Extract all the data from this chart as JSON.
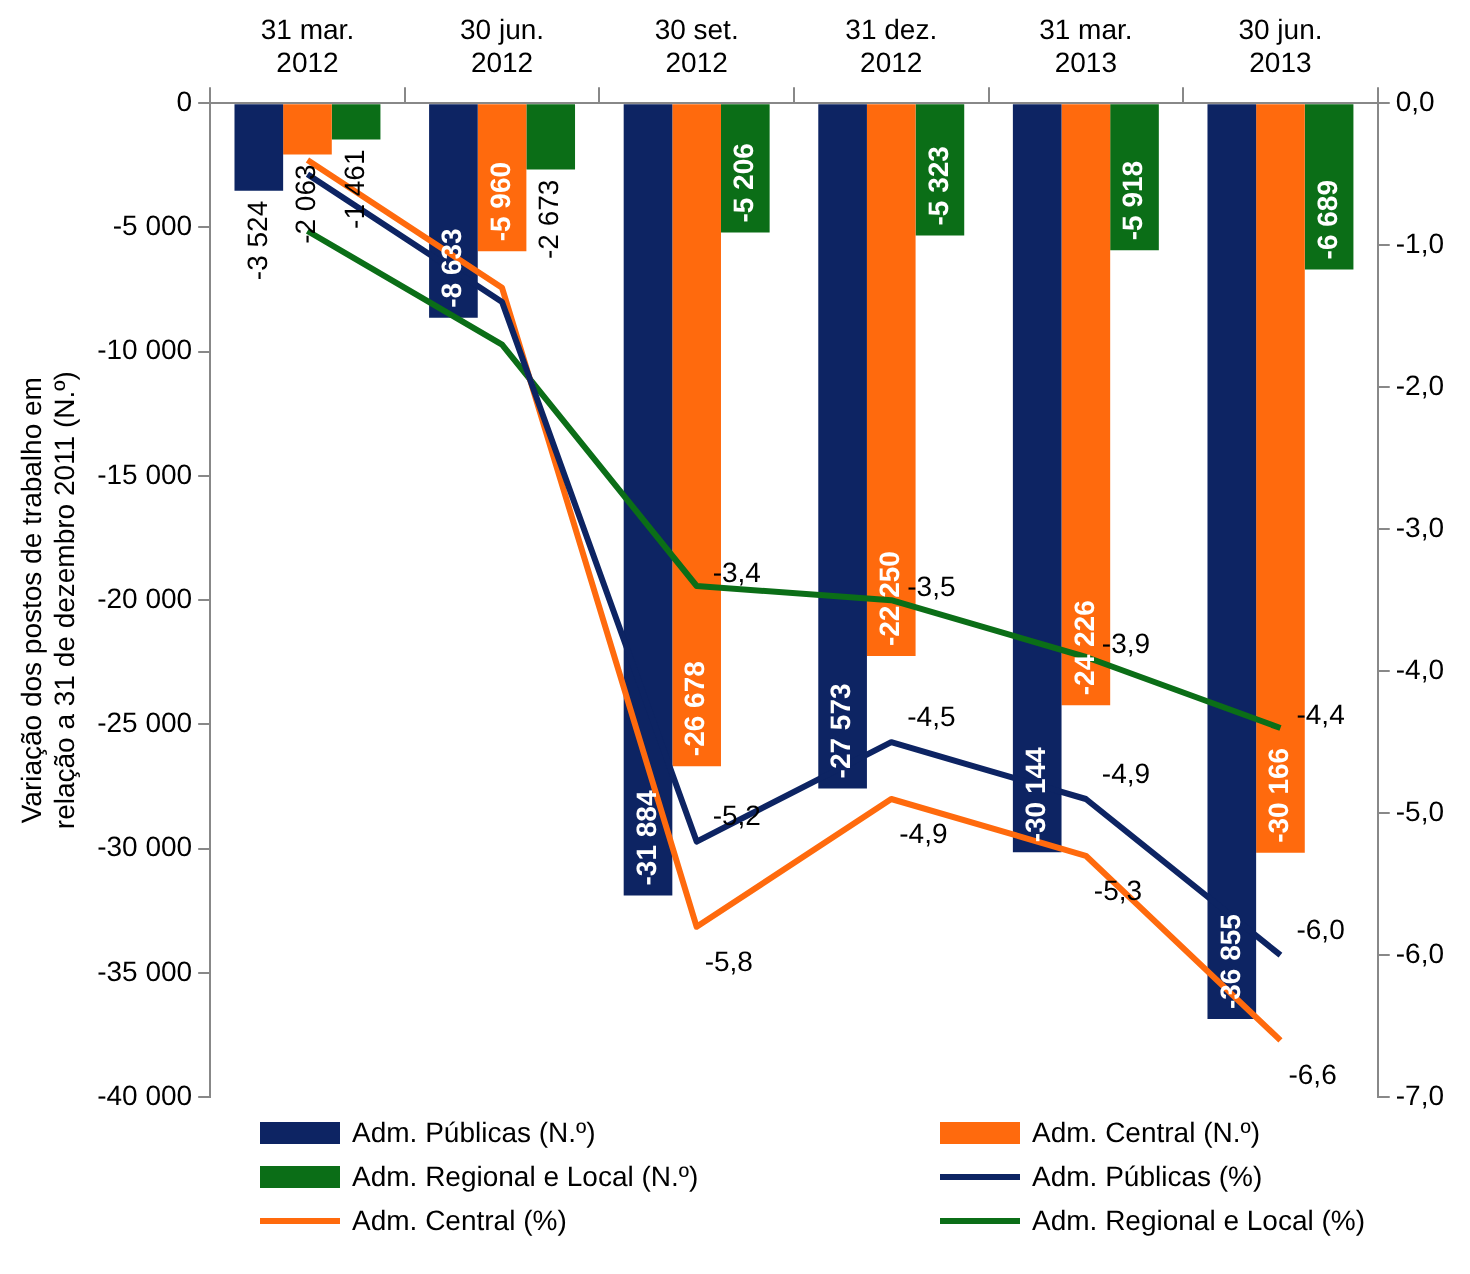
{
  "chart_data": {
    "type": "bar",
    "ylabel": "Variação dos postos de trabalho em relação a 31 de dezembro 2011 (N.º)",
    "categories": [
      "31 mar. 2012",
      "30 jun. 2012",
      "30 set. 2012",
      "31 dez. 2012",
      "31 mar. 2013",
      "30 jun. 2013"
    ],
    "series": [
      {
        "name": "Adm. Públicas (N.º)",
        "color": "#0d2463",
        "values": [
          -3524,
          -8633,
          -31884,
          -27573,
          -30144,
          -36855
        ],
        "value_labels": [
          "-3 524",
          "-8 633",
          "-31 884",
          "-27 573",
          "-30 144",
          "-36 855"
        ]
      },
      {
        "name": "Adm. Central (N.º)",
        "color": "#ff6a0d",
        "values": [
          -2063,
          -5960,
          -26678,
          -22250,
          -24226,
          -30166
        ],
        "value_labels": [
          "-2 063",
          "-5 960",
          "-26 678",
          "-22 250",
          "-24 226",
          "-30 166"
        ]
      },
      {
        "name": "Adm. Regional e Local (N.º)",
        "color": "#0b6e17",
        "values": [
          -1461,
          -2673,
          -5206,
          -5323,
          -5918,
          -6689
        ],
        "value_labels": [
          "-1 461",
          "-2 673",
          "-5 206",
          "-5 323",
          "-5 918",
          "-6 689"
        ]
      },
      {
        "name": "Adm. Públicas (%)",
        "type": "line",
        "axis": "y2",
        "color": "#0d2463",
        "values": [
          -0.5,
          -1.4,
          -5.2,
          -4.5,
          -4.9,
          -6.0
        ],
        "value_labels": [
          null,
          null,
          "-5,2",
          "-4,5",
          "-4,9",
          "-6,0"
        ]
      },
      {
        "name": "Adm. Central (%)",
        "type": "line",
        "axis": "y2",
        "color": "#ff6a0d",
        "values": [
          -0.4,
          -1.3,
          -5.8,
          -4.9,
          -5.3,
          -6.6
        ],
        "value_labels": [
          null,
          null,
          "-5,8",
          "-4,9",
          "-5,3",
          "-6,6"
        ]
      },
      {
        "name": "Adm. Regional e Local (%)",
        "type": "line",
        "axis": "y2",
        "color": "#0b6e17",
        "values": [
          -0.9,
          -1.7,
          -3.4,
          -3.5,
          -3.9,
          -4.4
        ],
        "value_labels": [
          null,
          null,
          "-3,4",
          "-3,5",
          "-3,9",
          "-4,4"
        ]
      }
    ],
    "ylim": [
      -40000,
      0
    ],
    "yticks": [
      {
        "value": -40000,
        "label": "-40 000"
      },
      {
        "value": -35000,
        "label": "-35 000"
      },
      {
        "value": -30000,
        "label": "-30 000"
      },
      {
        "value": -25000,
        "label": "-25 000"
      },
      {
        "value": -20000,
        "label": "-20 000"
      },
      {
        "value": -15000,
        "label": "-15 000"
      },
      {
        "value": -10000,
        "label": "-10 000"
      },
      {
        "value": -5000,
        "label": "-5 000"
      },
      0
    ],
    "y2lim": [
      -7,
      0
    ],
    "y2ticks": [
      {
        "value": -7,
        "label": "-7,0"
      },
      {
        "value": -6,
        "label": "-6,0"
      },
      {
        "value": -5,
        "label": "-5,0"
      },
      {
        "value": -4,
        "label": "-4,0"
      },
      {
        "value": -3,
        "label": "-3,0"
      },
      {
        "value": -2,
        "label": "-2,0"
      },
      {
        "value": -1,
        "label": "-1,0"
      },
      {
        "value": 0,
        "label": "0,0"
      }
    ],
    "grid": false,
    "legend": "bottom",
    "marker": "none",
    "line_style": "solid"
  }
}
